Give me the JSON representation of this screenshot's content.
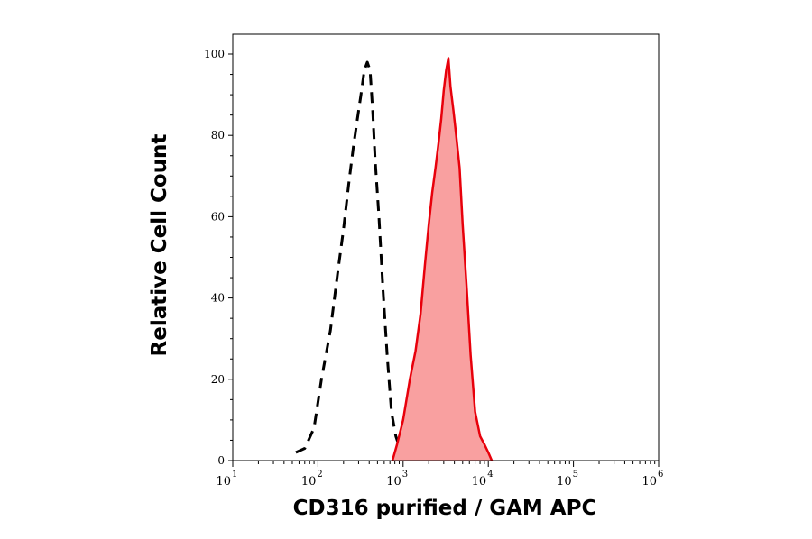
{
  "chart_data": {
    "type": "area",
    "title": "",
    "xlabel": "CD316 purified / GAM APC",
    "ylabel": "Relative Cell Count",
    "x_scale": "log",
    "xlim": [
      10,
      1000000
    ],
    "ylim": [
      0,
      105
    ],
    "x_ticks": [
      {
        "base": "10",
        "exp": "1"
      },
      {
        "base": "10",
        "exp": "2"
      },
      {
        "base": "10",
        "exp": "3"
      },
      {
        "base": "10",
        "exp": "4"
      },
      {
        "base": "10",
        "exp": "5"
      },
      {
        "base": "10",
        "exp": "6"
      }
    ],
    "y_ticks": [
      "0",
      "20",
      "40",
      "60",
      "80",
      "100"
    ],
    "y_tick_values": [
      0,
      20,
      40,
      60,
      80,
      100
    ],
    "grid": false,
    "series": [
      {
        "style": "dashed",
        "color": "#000000",
        "fill": false,
        "x": [
          55,
          70,
          90,
          110,
          140,
          170,
          200,
          230,
          260,
          290,
          320,
          350,
          380,
          410,
          440,
          470,
          520,
          580,
          650,
          730,
          820,
          950,
          1100,
          1250
        ],
        "y": [
          2,
          3,
          8,
          20,
          32,
          46,
          57,
          68,
          77,
          84,
          90,
          96,
          98,
          96,
          86,
          74,
          60,
          42,
          26,
          12,
          6,
          2,
          1,
          0
        ]
      },
      {
        "style": "solid",
        "color": "#e8000b",
        "fill": true,
        "fill_color": "#f9a0a0",
        "x": [
          750,
          850,
          1000,
          1200,
          1400,
          1600,
          1800,
          2000,
          2200,
          2400,
          2600,
          2800,
          3000,
          3200,
          3400,
          3600,
          3900,
          4200,
          4600,
          5000,
          5600,
          6200,
          7000,
          8000,
          9000,
          10000,
          11000
        ],
        "y": [
          0,
          4,
          10,
          20,
          27,
          36,
          48,
          58,
          66,
          72,
          78,
          84,
          91,
          96,
          99,
          92,
          86,
          80,
          72,
          58,
          42,
          26,
          12,
          6,
          4,
          2,
          0
        ]
      }
    ]
  }
}
